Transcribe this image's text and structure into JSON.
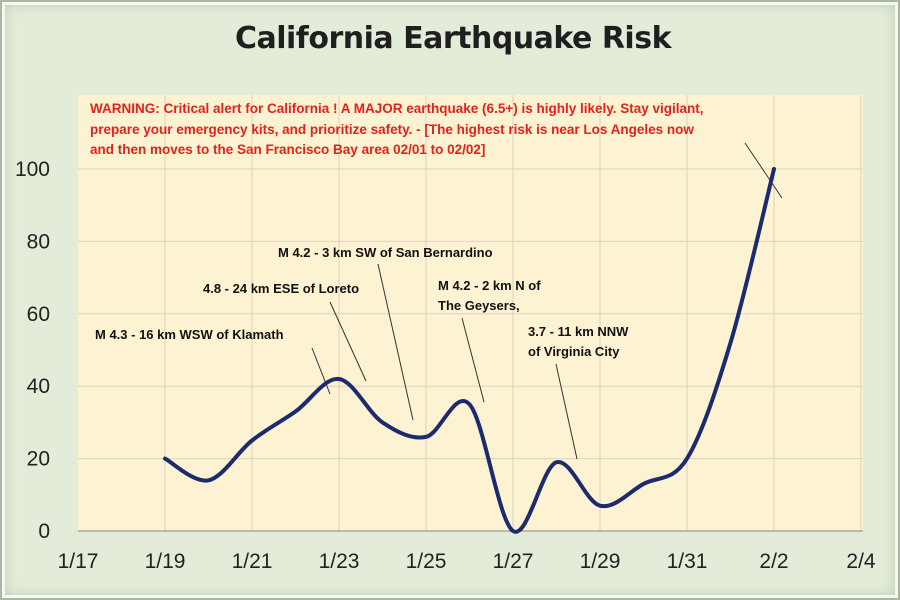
{
  "chart_data": {
    "type": "line",
    "title": "California Earthquake Risk",
    "xlabel": "",
    "ylabel": "",
    "x_tick_labels": [
      "1/17",
      "1/19",
      "1/21",
      "1/23",
      "1/25",
      "1/27",
      "1/29",
      "1/31",
      "2/2",
      "2/4"
    ],
    "y_tick_labels": [
      "0",
      "20",
      "40",
      "60",
      "80",
      "100"
    ],
    "ylim": [
      0,
      100
    ],
    "grid": true,
    "series": [
      {
        "name": "",
        "color": "#1c2a6e",
        "x": [
          "1/19",
          "1/20",
          "1/21",
          "1/22",
          "1/23",
          "1/24",
          "1/25",
          "1/26",
          "1/27",
          "1/28",
          "1/29",
          "1/30",
          "1/31",
          "2/1",
          "2/2"
        ],
        "y": [
          20,
          14,
          25,
          33,
          42,
          30,
          26,
          35,
          0,
          19,
          7,
          13,
          20,
          52,
          100
        ]
      }
    ],
    "warning": {
      "color": "#e2231a",
      "lines": [
        "WARNING: Critical alert for California ! A MAJOR earthquake (6.5+) is highly likely. Stay vigilant,",
        "prepare your emergency kits, and prioritize safety. - [The highest risk is near Los Angeles now",
        "and then moves to the San Francisco Bay area 02/01 to 02/02]"
      ]
    },
    "annotations": [
      {
        "lines": [
          "M 4.3 - 16 km WSW of Klamath"
        ]
      },
      {
        "lines": [
          "4.8 - 24 km ESE of Loreto"
        ]
      },
      {
        "lines": [
          "M 4.2 - 3 km SW of San Bernardino"
        ]
      },
      {
        "lines": [
          "M 4.2 - 2 km N of",
          "The Geysers,"
        ]
      },
      {
        "lines": [
          "3.7 - 11 km NNW",
          "of Virginia City"
        ]
      }
    ]
  }
}
